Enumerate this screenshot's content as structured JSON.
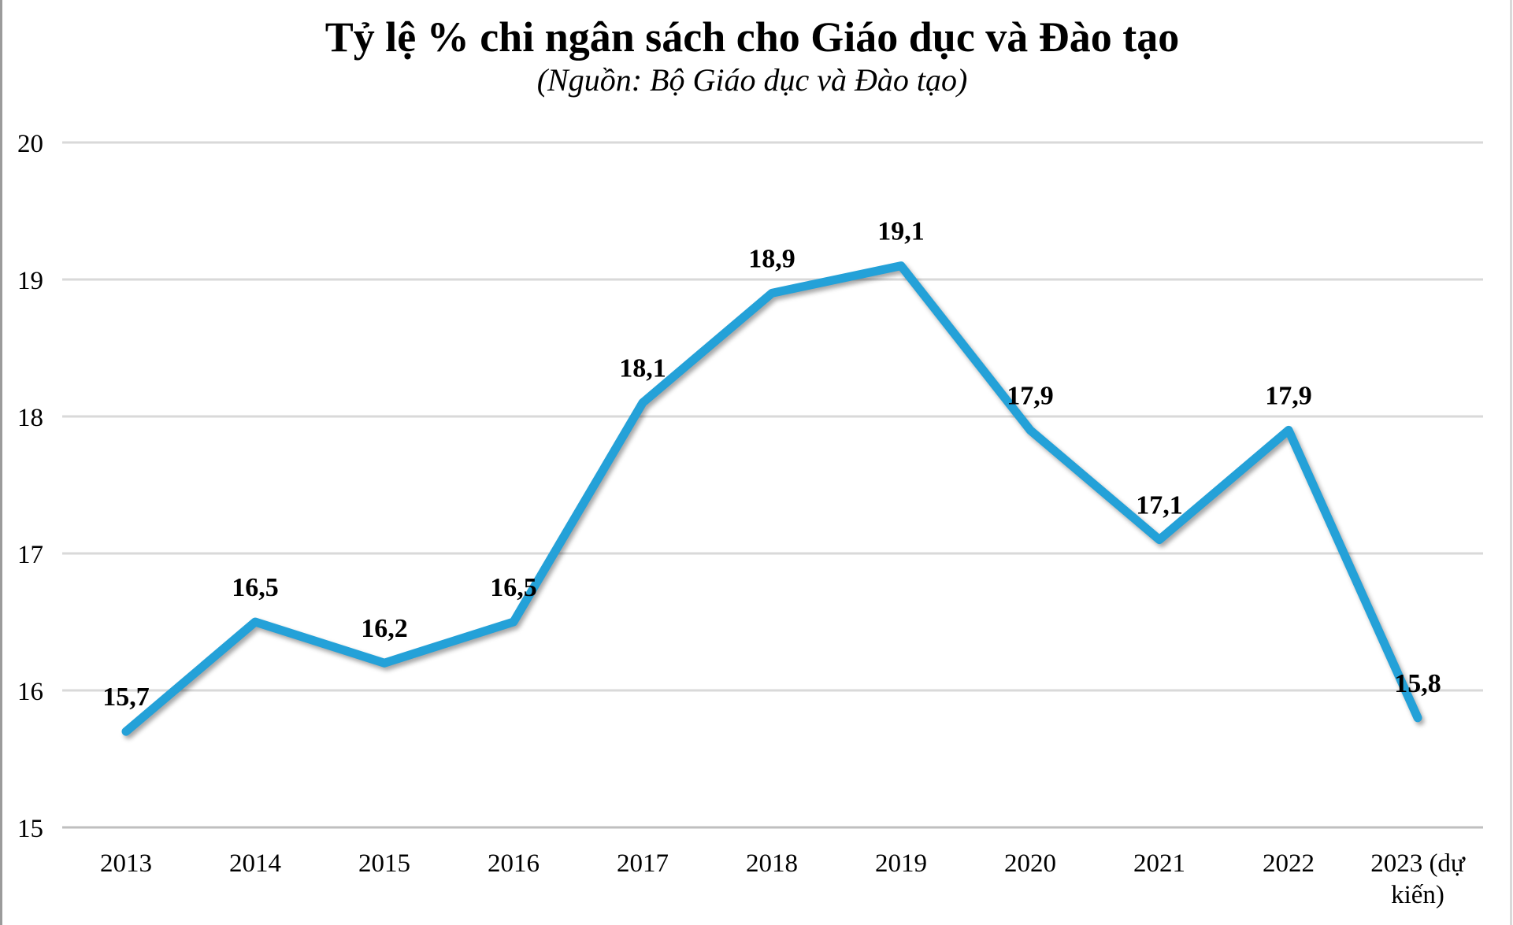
{
  "header": {
    "title": "Tỷ lệ % chi ngân sách cho Giáo dục và Đào tạo",
    "subtitle": "(Nguồn: Bộ Giáo dục và Đào tạo)"
  },
  "chart_data": {
    "type": "line",
    "title": "Tỷ lệ % chi ngân sách cho Giáo dục và Đào tạo",
    "subtitle": "(Nguồn: Bộ Giáo dục và Đào tạo)",
    "categories": [
      "2013",
      "2014",
      "2015",
      "2016",
      "2017",
      "2018",
      "2019",
      "2020",
      "2021",
      "2022",
      "2023 (dự kiến)"
    ],
    "values": [
      15.7,
      16.5,
      16.2,
      16.5,
      18.1,
      18.9,
      19.1,
      17.9,
      17.1,
      17.9,
      15.8
    ],
    "value_labels": [
      "15,7",
      "16,5",
      "16,2",
      "16,5",
      "18,1",
      "18,9",
      "19,1",
      "17,9",
      "17,1",
      "17,9",
      "15,8"
    ],
    "ylim": [
      15,
      20
    ],
    "yticks": [
      15,
      16,
      17,
      18,
      19,
      20
    ],
    "grid": "horizontal",
    "legend": "none",
    "series_color": "#24A1D8",
    "grid_color": "#D9D9D9",
    "axis_color": "#BFBFBF",
    "text_color": "#000000",
    "left_edge_color": "#9B9B9B",
    "right_edge_color": "#D9D9D9"
  }
}
